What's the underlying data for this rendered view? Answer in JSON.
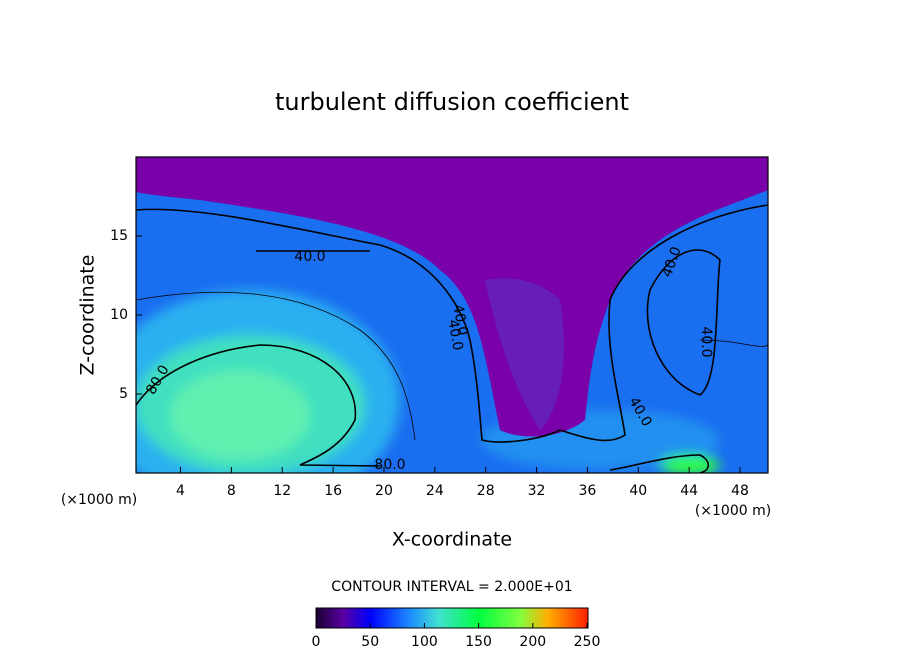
{
  "chart_data": {
    "type": "contour",
    "title": "turbulent diffusion coefficient",
    "x_label": "X-coordinate",
    "y_label": "Z-coordinate",
    "x_unit": "(×1000 m)",
    "y_unit": "(×1000 m)",
    "xlim": [
      0.5,
      50.2
    ],
    "xticks": [
      4,
      8,
      12,
      16,
      20,
      24,
      28,
      32,
      36,
      40,
      44,
      48
    ],
    "ylim": [
      0,
      20
    ],
    "yticks": [
      5,
      10,
      15
    ],
    "contour_labels": [
      "40.0",
      "40.0",
      "40.0",
      "40.0",
      "80.0",
      "80.0",
      "40.0",
      "40.0"
    ],
    "contour_interval": "CONTOUR INTERVAL = 2.000E+01",
    "colorbar": {
      "lim": [
        0,
        250
      ],
      "ticks": [
        0,
        50,
        100,
        150,
        200,
        250
      ]
    }
  }
}
